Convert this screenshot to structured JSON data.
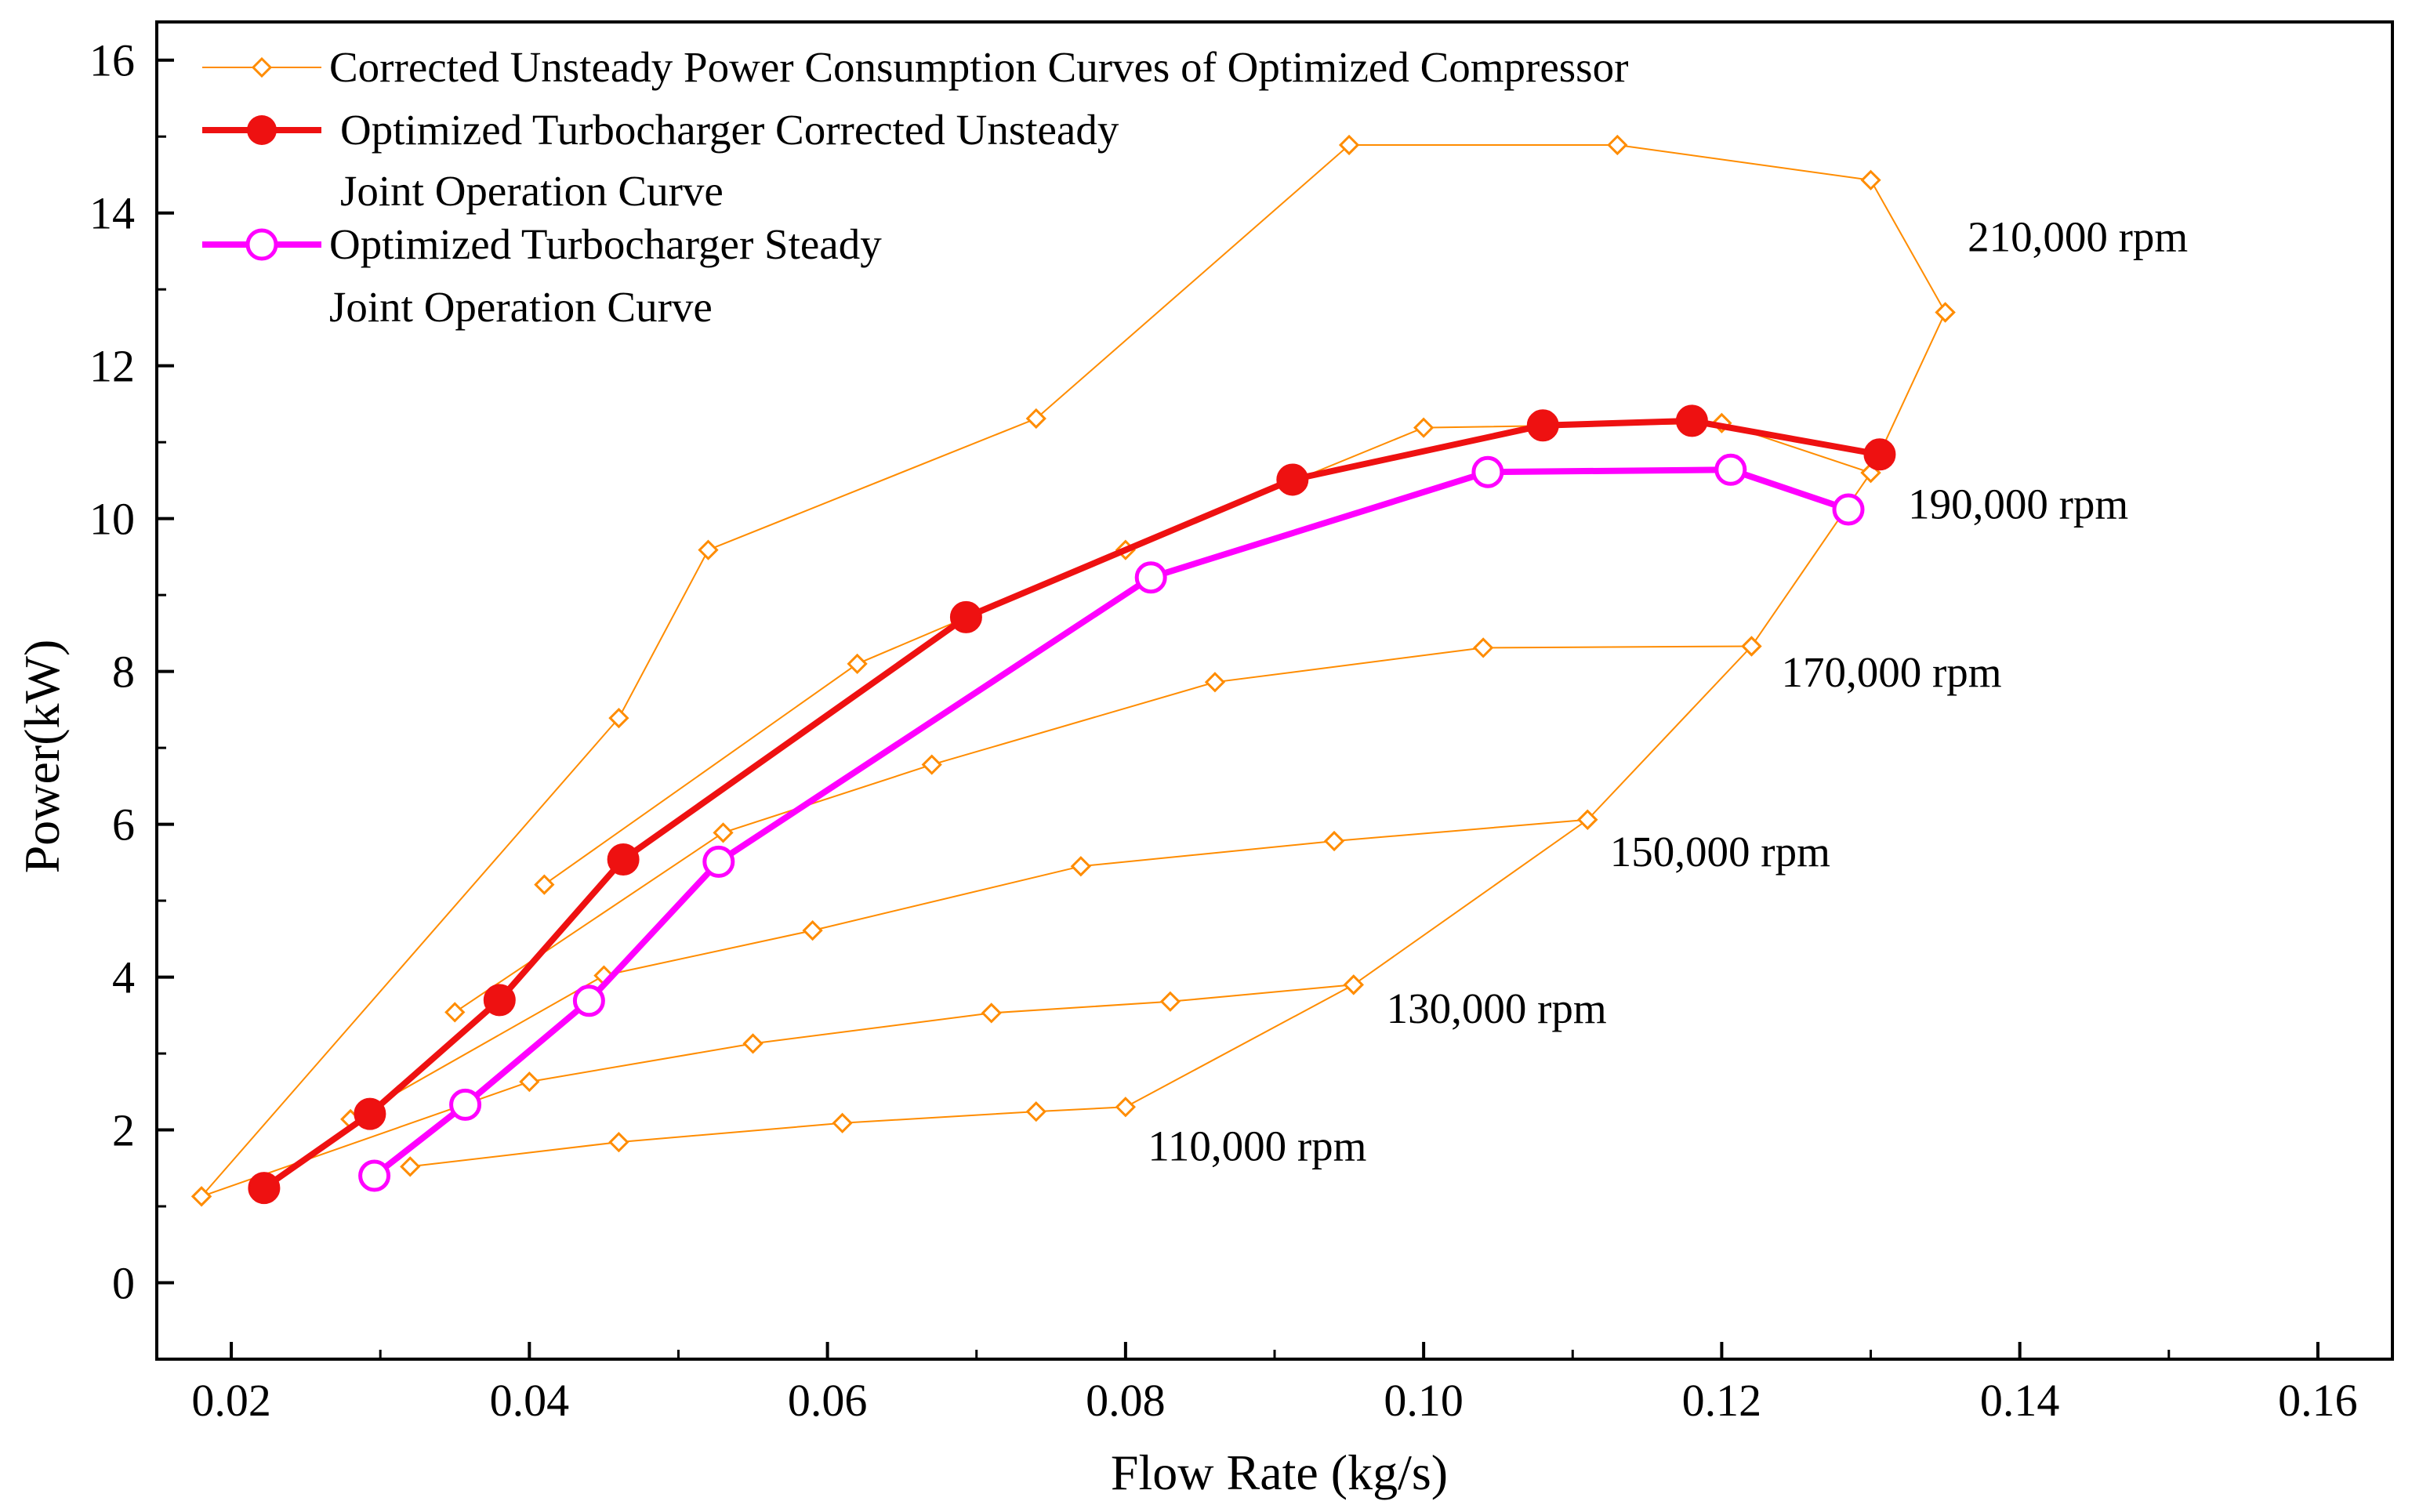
{
  "chart_data": {
    "type": "line",
    "xlabel": "Flow Rate (kg/s)",
    "ylabel": "Power(kW)",
    "xlim": [
      0.015,
      0.165
    ],
    "ylim": [
      -1,
      16.5
    ],
    "xticks": [
      0.02,
      0.04,
      0.06,
      0.08,
      0.1,
      0.12,
      0.14,
      0.16
    ],
    "xtick_labels": [
      "0.02",
      "0.04",
      "0.06",
      "0.08",
      "0.10",
      "0.12",
      "0.14",
      "0.16"
    ],
    "yticks": [
      0,
      2,
      4,
      6,
      8,
      10,
      12,
      14,
      16
    ],
    "ytick_labels": [
      "0",
      "2",
      "4",
      "6",
      "8",
      "10",
      "12",
      "14",
      "16"
    ],
    "grid": false,
    "legend_position": "top-left",
    "colors": {
      "compressor": "#ff8c00",
      "unsteady": "#ee1111",
      "steady": "#ff00ff",
      "axis": "#000000"
    },
    "legend": [
      {
        "key": "compressor",
        "lines": [
          "Corrected Unsteady Power Consumption Curves of Optimized Compressor"
        ]
      },
      {
        "key": "unsteady",
        "lines": [
          "Optimized Turbocharger Corrected Unsteady",
          "Joint Operation Curve"
        ]
      },
      {
        "key": "steady",
        "lines": [
          "Optimized Turbocharger Steady",
          "Joint Operation Curve"
        ]
      }
    ],
    "series": [
      {
        "name": "Corrected Unsteady Power Consumption Curves of Optimized Compressor",
        "key": "compressor",
        "style": "thin-line-open-diamond",
        "curves": [
          {
            "speed": "110,000 rpm",
            "x": [
              0.032,
              0.046,
              0.061,
              0.074,
              0.08,
              0.0953,
              0.111,
              0.122,
              0.13,
              0.135
            ],
            "y": [
              1.52,
              1.84,
              2.09,
              2.24,
              2.3,
              3.9,
              6.06,
              8.33,
              10.6,
              12.7
            ]
          },
          {
            "speed": "130,000 rpm",
            "x": [
              0.018,
              0.04,
              0.055,
              0.071,
              0.083,
              0.0953
            ],
            "y": [
              1.13,
              2.63,
              3.13,
              3.53,
              3.68,
              3.9
            ]
          },
          {
            "speed": "150,000 rpm",
            "x": [
              0.028,
              0.045,
              0.059,
              0.077,
              0.094,
              0.111
            ],
            "y": [
              2.14,
              4.02,
              4.61,
              5.45,
              5.78,
              6.06
            ]
          },
          {
            "speed": "170,000 rpm",
            "x": [
              0.035,
              0.053,
              0.067,
              0.086,
              0.104,
              0.122
            ],
            "y": [
              3.54,
              5.89,
              6.78,
              7.86,
              8.31,
              8.33
            ]
          },
          {
            "speed": "190,000 rpm",
            "x": [
              0.041,
              0.062,
              0.08,
              0.1,
              0.12,
              0.13
            ],
            "y": [
              5.21,
              8.1,
              9.59,
              11.19,
              11.25,
              10.6
            ]
          },
          {
            "speed": "210,000 rpm",
            "x": [
              0.018,
              0.046,
              0.052,
              0.074,
              0.095,
              0.113,
              0.13,
              0.135
            ],
            "y": [
              1.13,
              7.39,
              9.59,
              11.31,
              14.89,
              14.89,
              14.43,
              12.7
            ]
          }
        ]
      },
      {
        "name": "Optimized Turbocharger Corrected Unsteady Joint Operation Curve",
        "key": "unsteady",
        "style": "thick-line-filled-circle",
        "x": [
          0.0222,
          0.0293,
          0.038,
          0.0463,
          0.0693,
          0.0912,
          0.108,
          0.118,
          0.1306
        ],
        "y": [
          1.24,
          2.21,
          3.7,
          5.54,
          8.71,
          10.51,
          11.22,
          11.28,
          10.84
        ]
      },
      {
        "name": "Optimized Turbocharger Steady Joint Operation Curve",
        "key": "steady",
        "style": "thick-line-open-circle",
        "x": [
          0.0296,
          0.0357,
          0.044,
          0.0527,
          0.0817,
          0.1043,
          0.1206,
          0.1285
        ],
        "y": [
          1.4,
          2.33,
          3.69,
          5.51,
          9.23,
          10.61,
          10.64,
          10.12
        ]
      }
    ],
    "annotations": [
      {
        "text": "210,000 rpm",
        "x": 0.1365,
        "y": 13.5
      },
      {
        "text": "190,000 rpm",
        "x": 0.1325,
        "y": 10.0
      },
      {
        "text": "170,000 rpm",
        "x": 0.124,
        "y": 7.8
      },
      {
        "text": "150,000 rpm",
        "x": 0.1125,
        "y": 5.45
      },
      {
        "text": "130,000 rpm",
        "x": 0.0975,
        "y": 3.4
      },
      {
        "text": "110,000 rpm",
        "x": 0.0815,
        "y": 1.6
      }
    ]
  }
}
